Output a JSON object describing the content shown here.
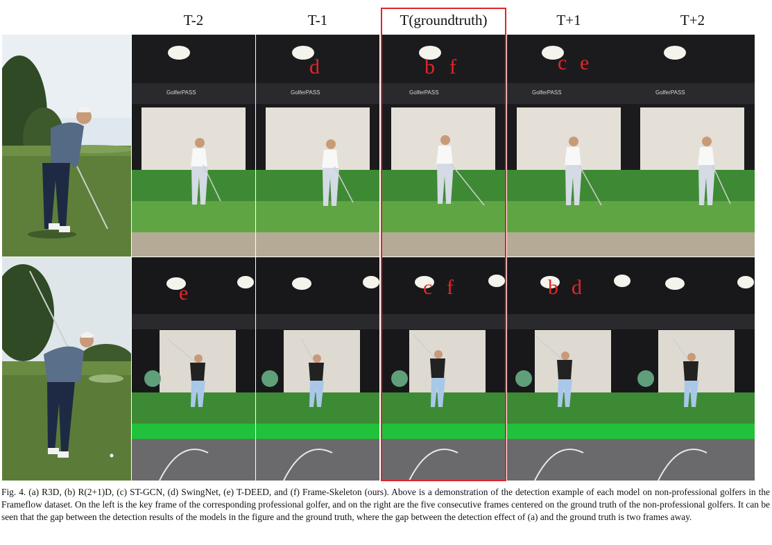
{
  "headers": [
    "T-2",
    "T-1",
    "T(groundtruth)",
    "T+1",
    "T+2"
  ],
  "rows": [
    {
      "marks": [
        {
          "col": 1,
          "text": "d"
        },
        {
          "col": 2,
          "text": "b"
        },
        {
          "col": 2,
          "text": "f"
        },
        {
          "col": 3,
          "text": "c"
        },
        {
          "col": 3,
          "text": "e"
        }
      ]
    },
    {
      "marks": [
        {
          "col": 0,
          "text": "e"
        },
        {
          "col": 2,
          "text": "c"
        },
        {
          "col": 2,
          "text": "f"
        },
        {
          "col": 3,
          "text": "b"
        },
        {
          "col": 3,
          "text": "d"
        }
      ]
    }
  ],
  "scene": {
    "brand_text": "GolferPASS"
  },
  "caption": "Fig. 4.  (a) R3D, (b) R(2+1)D, (c) ST-GCN, (d) SwingNet, (e) T-DEED, and (f) Frame-Skeleton (ours). Above is a demonstration of the detection example of each model on non-professional golfers in the Frameflow dataset. On the left is the key frame of the corresponding professional golfer, and on the right are the five consecutive frames centered on the ground truth of the non-professional golfers. It can be seen that the gap between the detection results of the models in the figure and the ground truth, where the gap between the detection effect of (a) and the ground truth is two frames away."
}
